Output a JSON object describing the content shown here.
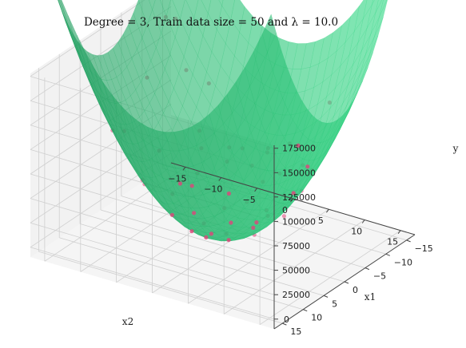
{
  "chart_data": {
    "type": "surface3d",
    "title": "Degree = 3, Train data size = 50 and λ = 10.0",
    "xlabel": "x2",
    "ylabel": "x1",
    "zlabel": "y",
    "x2_ticks": [
      "−15",
      "−10",
      "−5",
      "0",
      "5",
      "10",
      "15"
    ],
    "x1_ticks": [
      "−15",
      "−10",
      "−5",
      "0",
      "5",
      "10",
      "15"
    ],
    "z_ticks": [
      "0",
      "25000",
      "50000",
      "75000",
      "100000",
      "125000",
      "150000",
      "175000"
    ],
    "x2_range": [
      -17,
      17
    ],
    "x1_range": [
      -17,
      17
    ],
    "z_range": [
      -10000,
      178000
    ],
    "surface": {
      "model": "y = 600 * (x1^2 + x2^2)",
      "color": "#2ee68a",
      "opacity": 0.6
    },
    "points_color": "#e0447a",
    "points": [
      {
        "x1": -15.5,
        "x2": -15.5,
        "y": 145000
      },
      {
        "x1": -14,
        "x2": -16,
        "y": 150000
      },
      {
        "x1": -12,
        "x2": -12,
        "y": 110000
      },
      {
        "x1": -14,
        "x2": -10,
        "y": 95000
      },
      {
        "x1": -10,
        "x2": -9,
        "y": 60000
      },
      {
        "x1": -6,
        "x2": -14,
        "y": 115000
      },
      {
        "x1": -8,
        "x2": -4,
        "y": 45000
      },
      {
        "x1": -5,
        "x2": -2,
        "y": 25000
      },
      {
        "x1": -3,
        "x2": -6,
        "y": 30000
      },
      {
        "x1": 0,
        "x2": -4,
        "y": 15000
      },
      {
        "x1": -2,
        "x2": 0,
        "y": 8000
      },
      {
        "x1": 2,
        "x2": 2,
        "y": 6000
      },
      {
        "x1": -4,
        "x2": 4,
        "y": 18000
      },
      {
        "x1": 1,
        "x2": -1,
        "y": 3000
      },
      {
        "x1": 4,
        "x2": -2,
        "y": 12000
      },
      {
        "x1": 6,
        "x2": 4,
        "y": 28000
      },
      {
        "x1": 3,
        "x2": 6,
        "y": 30000
      },
      {
        "x1": 8,
        "x2": 2,
        "y": 40000
      },
      {
        "x1": 5,
        "x2": 9,
        "y": 60000
      },
      {
        "x1": 10,
        "x2": 6,
        "y": 70000
      },
      {
        "x1": 12,
        "x2": 11,
        "y": 130000
      },
      {
        "x1": 15,
        "x2": 15,
        "y": 165000
      },
      {
        "x1": -9,
        "x2": 6,
        "y": 60000
      },
      {
        "x1": -11,
        "x2": 3,
        "y": 70000
      },
      {
        "x1": -6,
        "x2": 9,
        "y": 70000
      },
      {
        "x1": 7,
        "x2": 12,
        "y": 110000
      },
      {
        "x1": 2,
        "x2": 13,
        "y": 105000
      },
      {
        "x1": 9,
        "x2": -6,
        "y": 70000
      },
      {
        "x1": 11,
        "x2": -9,
        "y": 120000
      },
      {
        "x1": 13,
        "x2": 4,
        "y": 110000
      },
      {
        "x1": -1,
        "x2": 8,
        "y": 35000
      },
      {
        "x1": 0,
        "x2": 11,
        "y": 70000
      },
      {
        "x1": 5,
        "x2": -8,
        "y": 50000
      },
      {
        "x1": -2,
        "x2": -10,
        "y": 60000
      },
      {
        "x1": 3,
        "x2": -12,
        "y": 90000
      },
      {
        "x1": -7,
        "x2": -7,
        "y": 55000
      },
      {
        "x1": 6,
        "x2": 14,
        "y": 140000
      },
      {
        "x1": 14,
        "x2": 9,
        "y": 150000
      },
      {
        "x1": -12,
        "x2": 8,
        "y": 120000
      },
      {
        "x1": -3,
        "x2": 3,
        "y": 12000
      },
      {
        "x1": 1,
        "x2": 5,
        "y": 15000
      },
      {
        "x1": 4,
        "x2": 0,
        "y": 10000
      },
      {
        "x1": -5,
        "x2": 7,
        "y": 45000
      },
      {
        "x1": 8,
        "x2": 8,
        "y": 75000
      },
      {
        "x1": 10,
        "x2": 12,
        "y": 140000
      },
      {
        "x1": -8,
        "x2": 1,
        "y": 35000
      },
      {
        "x1": 0,
        "x2": -7,
        "y": 28000
      },
      {
        "x1": 12,
        "x2": 1,
        "y": 90000
      },
      {
        "x1": -10,
        "x2": -3,
        "y": 55000
      },
      {
        "x1": 7,
        "x2": -3,
        "y": 35000
      }
    ]
  }
}
